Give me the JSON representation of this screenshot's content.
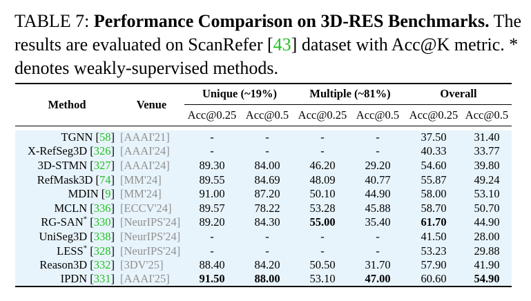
{
  "caption": {
    "label": "TABLE 7:",
    "title": "Performance Comparison on 3D-RES Benchmarks.",
    "text_before_ref": "The results are evaluated on ScanRefer [",
    "ref": "43",
    "text_after_ref": "] dataset with Acc@K metric. * denotes weakly-supervised methods."
  },
  "table": {
    "headers": {
      "method": "Method",
      "venue": "Venue",
      "unique": "Unique (~19%)",
      "multiple": "Multiple (~81%)",
      "overall": "Overall",
      "sub": [
        "Acc@0.25",
        "Acc@0.5",
        "Acc@0.25",
        "Acc@0.5",
        "Acc@0.25",
        "Acc@0.5"
      ]
    },
    "rows": [
      {
        "method": "TGNN",
        "star": "",
        "ref": "58",
        "venue": "[AAAI'21]",
        "vals": [
          "-",
          "-",
          "-",
          "-",
          "37.50",
          "31.40"
        ],
        "bold": []
      },
      {
        "method": "X-RefSeg3D",
        "star": "",
        "ref": "326",
        "venue": "[AAAI'24]",
        "vals": [
          "-",
          "-",
          "-",
          "-",
          "40.33",
          "33.77"
        ],
        "bold": []
      },
      {
        "method": "3D-STMN",
        "star": "",
        "ref": "327",
        "venue": "[AAAI'24]",
        "vals": [
          "89.30",
          "84.00",
          "46.20",
          "29.20",
          "54.60",
          "39.80"
        ],
        "bold": []
      },
      {
        "method": "RefMask3D",
        "star": "",
        "ref": "74",
        "venue": "[MM'24]",
        "vals": [
          "89.55",
          "84.69",
          "48.09",
          "40.77",
          "55.87",
          "49.24"
        ],
        "bold": []
      },
      {
        "method": "MDIN",
        "star": "",
        "ref": "9",
        "venue": "[MM'24]",
        "vals": [
          "91.00",
          "87.20",
          "50.10",
          "44.90",
          "58.00",
          "53.10"
        ],
        "bold": []
      },
      {
        "method": "MCLN",
        "star": "",
        "ref": "336",
        "venue": "[ECCV'24]",
        "vals": [
          "89.57",
          "78.22",
          "53.28",
          "45.88",
          "58.70",
          "50.70"
        ],
        "bold": []
      },
      {
        "method": "RG-SAN",
        "star": "*",
        "ref": "330",
        "venue": "[NeurIPS'24]",
        "vals": [
          "89.20",
          "84.30",
          "55.00",
          "35.40",
          "61.70",
          "44.90"
        ],
        "bold": [
          2,
          4
        ]
      },
      {
        "method": "UniSeg3D",
        "star": "",
        "ref": "338",
        "venue": "[NeurIPS'24]",
        "vals": [
          "-",
          "-",
          "-",
          "-",
          "41.50",
          "28.00"
        ],
        "bold": []
      },
      {
        "method": "LESS",
        "star": "*",
        "ref": "328",
        "venue": "[NeurIPS'24]",
        "vals": [
          "-",
          "-",
          "-",
          "-",
          "53.23",
          "29.88"
        ],
        "bold": []
      },
      {
        "method": "Reason3D",
        "star": "",
        "ref": "332",
        "venue": "[3DV'25]",
        "vals": [
          "88.40",
          "84.20",
          "50.50",
          "31.70",
          "57.90",
          "41.90"
        ],
        "bold": []
      },
      {
        "method": "IPDN",
        "star": "",
        "ref": "331",
        "venue": "[AAAI'25]",
        "vals": [
          "91.50",
          "88.00",
          "53.10",
          "47.00",
          "60.60",
          "54.90"
        ],
        "bold": [
          0,
          1,
          3,
          5
        ]
      }
    ]
  }
}
